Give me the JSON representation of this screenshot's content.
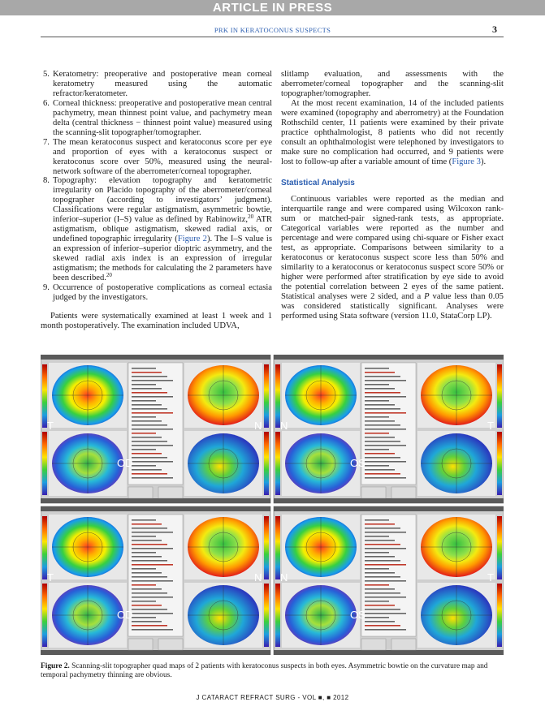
{
  "header": {
    "banner": "ARTICLE IN PRESS",
    "running_title": "PRK IN KERATOCONUS SUSPECTS",
    "page_number": "3"
  },
  "left_column": {
    "items": [
      {
        "number": "5.",
        "parts": [
          {
            "text": "Keratometry: preoperative and postoperative mean corneal keratometry measured using the automatic refractor/keratometer."
          }
        ]
      },
      {
        "number": "6.",
        "parts": [
          {
            "text": "Corneal thickness: preoperative and postoperative mean central pachymetry, mean thinnest point value, and pachymetry mean delta (central thickness − thinnest point value) measured using the scanning-slit topographer/tomographer."
          }
        ]
      },
      {
        "number": "7.",
        "parts": [
          {
            "text": "The mean keratoconus suspect and keratoconus score per eye and proportion of eyes with a keratoconus suspect or keratoconus score over 50%, measured using the neural-network software of the aberrometer/corneal topographer."
          }
        ]
      },
      {
        "number": "8.",
        "parts": [
          {
            "text": "Topography: elevation topography and keratometric irregularity on Placido topography of the aberrometer/corneal topographer (according to investigators’ judgment). Classifications were regular astigmatism, asymmetric bowtie, inferior–superior (I–S) value as defined by Rabinowitz,"
          },
          {
            "text": "20",
            "style": "sup"
          },
          {
            "text": " ATR astigmatism, oblique astigmatism, skewed radial axis, or undefined topographic irregularity ("
          },
          {
            "text": "Figure 2",
            "style": "link"
          },
          {
            "text": "). The I–S value is an expression of inferior–superior dioptric asymmetry, and the skewed radial axis index is an expression of irregular astigmatism; the methods for calculating the 2 parameters have been described."
          },
          {
            "text": "20",
            "style": "sup"
          }
        ]
      },
      {
        "number": "9.",
        "parts": [
          {
            "text": "Occurrence of postoperative complications as corneal ectasia judged by the investigators."
          }
        ]
      }
    ],
    "paragraph": [
      {
        "text": "Patients were systematically examined at least 1 week and 1 month postoperatively. The examination included UDVA,"
      }
    ]
  },
  "right_column": {
    "continuation": [
      {
        "text": "slitlamp evaluation, and assessments with the aberrometer/corneal topographer and the scanning-slit topographer/tomographer."
      }
    ],
    "paragraph": [
      {
        "text": "At the most recent examination, 14 of the included patients were examined (topography and aberrometry) at the Foundation Rothschild center, 11 patients were examined by their private practice ophthalmologist, 8 patients who did not recently consult an ophthalmologist were telephoned by investigators to make sure no complication had occurred, and 9 patients were lost to follow-up after a variable amount of time ("
      },
      {
        "text": "Figure 3",
        "style": "link"
      },
      {
        "text": ")."
      }
    ],
    "heading": "Statistical Analysis",
    "stats_paragraph": [
      {
        "text": "Continuous variables were reported as the median and interquartile range and were compared using Wilcoxon rank-sum or matched-pair signed-rank tests, as appropriate. Categorical variables were reported as the number and percentage and were compared using chi-square or Fisher exact test, as appropriate. Comparisons between similarity to a keratoconus or keratoconus suspect score less than 50% and similarity to a keratoconus or keratoconus suspect score 50% or higher were performed after stratification by eye side to avoid the potential correlation between 2 eyes of the same patient. Statistical analyses were 2 sided, and a "
      },
      {
        "text": "P",
        "style": "italic"
      },
      {
        "text": " value less than 0.05 was considered statistically significant. Analyses were performed using Stata software (version 11.0, StataCorp LP)."
      }
    ]
  },
  "figure": {
    "panels": [
      {
        "eye": "OD",
        "left": "T",
        "right": "N"
      },
      {
        "eye": "OS",
        "left": "N",
        "right": "T"
      },
      {
        "eye": "OD",
        "left": "T",
        "right": "N"
      },
      {
        "eye": "OS",
        "left": "N",
        "right": "T"
      }
    ],
    "caption": [
      {
        "text": "Figure 2.",
        "style": "bold"
      },
      {
        "text": " Scanning-slit topographer quad maps of 2 patients with keratoconus suspects in both eyes. Asymmetric bowtie on the curvature map and temporal pachymetry thinning are obvious."
      }
    ]
  },
  "footer": "J CATARACT REFRACT SURG - VOL ■, ■ 2012"
}
